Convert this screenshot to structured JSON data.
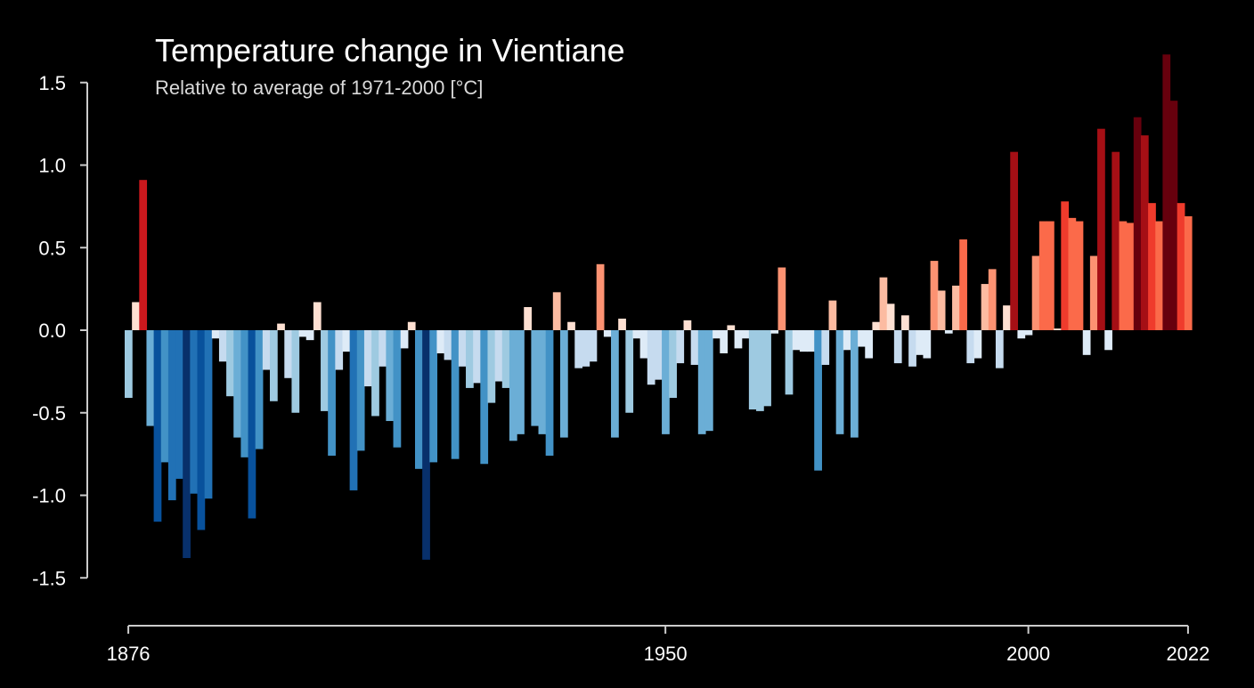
{
  "chart_data": {
    "type": "bar",
    "title": "Temperature change in Vientiane",
    "subtitle": "Relative to average of 1971-2000  [°C]",
    "xlabel": "",
    "ylabel": "",
    "x_start": 1876,
    "x_end": 2022,
    "ylim": [
      -1.5,
      1.5
    ],
    "y_ticks": [
      1.5,
      1.0,
      0.5,
      0.0,
      -0.5,
      -1.0,
      -1.5
    ],
    "y_tick_labels": [
      "1.5",
      "1.0",
      "0.5",
      "0.0",
      "-0.5",
      "-1.0",
      "-1.5"
    ],
    "x_ticks": [
      1876,
      1950,
      2000,
      2022
    ],
    "x_tick_labels": [
      "1876",
      "1950",
      "2000",
      "2022"
    ],
    "grid": false,
    "colors": {
      "background": "#000000",
      "axis": "#cccccc",
      "text": "#ffffff",
      "scale": [
        "#08306b",
        "#08519c",
        "#2171b5",
        "#4292c6",
        "#6baed6",
        "#9ecae1",
        "#c6dbef",
        "#deebf7",
        "#fee0d2",
        "#fcbba1",
        "#fc9272",
        "#fb6a4a",
        "#ef3b2c",
        "#cb181d",
        "#a50f15",
        "#67000d"
      ]
    },
    "values": [
      -0.41,
      0.17,
      0.91,
      -0.58,
      -1.16,
      -0.8,
      -1.03,
      -0.9,
      -1.38,
      -0.99,
      -1.21,
      -1.02,
      -0.05,
      -0.19,
      -0.4,
      -0.65,
      -0.77,
      -1.14,
      -0.72,
      -0.24,
      -0.43,
      0.04,
      -0.29,
      -0.5,
      -0.04,
      -0.06,
      0.17,
      -0.49,
      -0.76,
      -0.24,
      -0.13,
      -0.97,
      -0.73,
      -0.34,
      -0.52,
      -0.22,
      -0.55,
      -0.71,
      -0.11,
      0.05,
      -0.84,
      -1.39,
      -0.8,
      -0.14,
      -0.18,
      -0.78,
      -0.22,
      -0.35,
      -0.32,
      -0.81,
      -0.44,
      -0.31,
      -0.35,
      -0.67,
      -0.63,
      0.14,
      -0.58,
      -0.63,
      -0.76,
      0.23,
      -0.65,
      0.05,
      -0.23,
      -0.22,
      -0.19,
      0.4,
      -0.04,
      -0.65,
      0.07,
      -0.5,
      -0.05,
      -0.17,
      -0.33,
      -0.3,
      -0.63,
      -0.41,
      -0.2,
      0.06,
      -0.21,
      -0.63,
      -0.61,
      -0.05,
      -0.14,
      0.03,
      -0.11,
      -0.05,
      -0.48,
      -0.49,
      -0.46,
      -0.02,
      0.38,
      -0.39,
      -0.12,
      -0.13,
      -0.13,
      -0.85,
      -0.21,
      0.18,
      -0.63,
      -0.12,
      -0.65,
      -0.1,
      -0.17,
      0.05,
      0.32,
      0.16,
      -0.2,
      0.09,
      -0.22,
      -0.15,
      -0.17,
      0.42,
      0.24,
      -0.02,
      0.27,
      0.55,
      -0.2,
      -0.17,
      0.28,
      0.37,
      -0.23,
      0.15,
      1.08,
      -0.05,
      -0.03,
      0.45,
      0.66,
      0.66,
      0.01,
      0.78,
      0.68,
      0.66,
      -0.15,
      0.45,
      1.22,
      -0.12,
      1.08,
      0.66,
      0.65,
      1.29,
      1.18,
      0.77,
      0.66,
      1.67,
      1.39,
      0.77,
      0.69
    ]
  }
}
